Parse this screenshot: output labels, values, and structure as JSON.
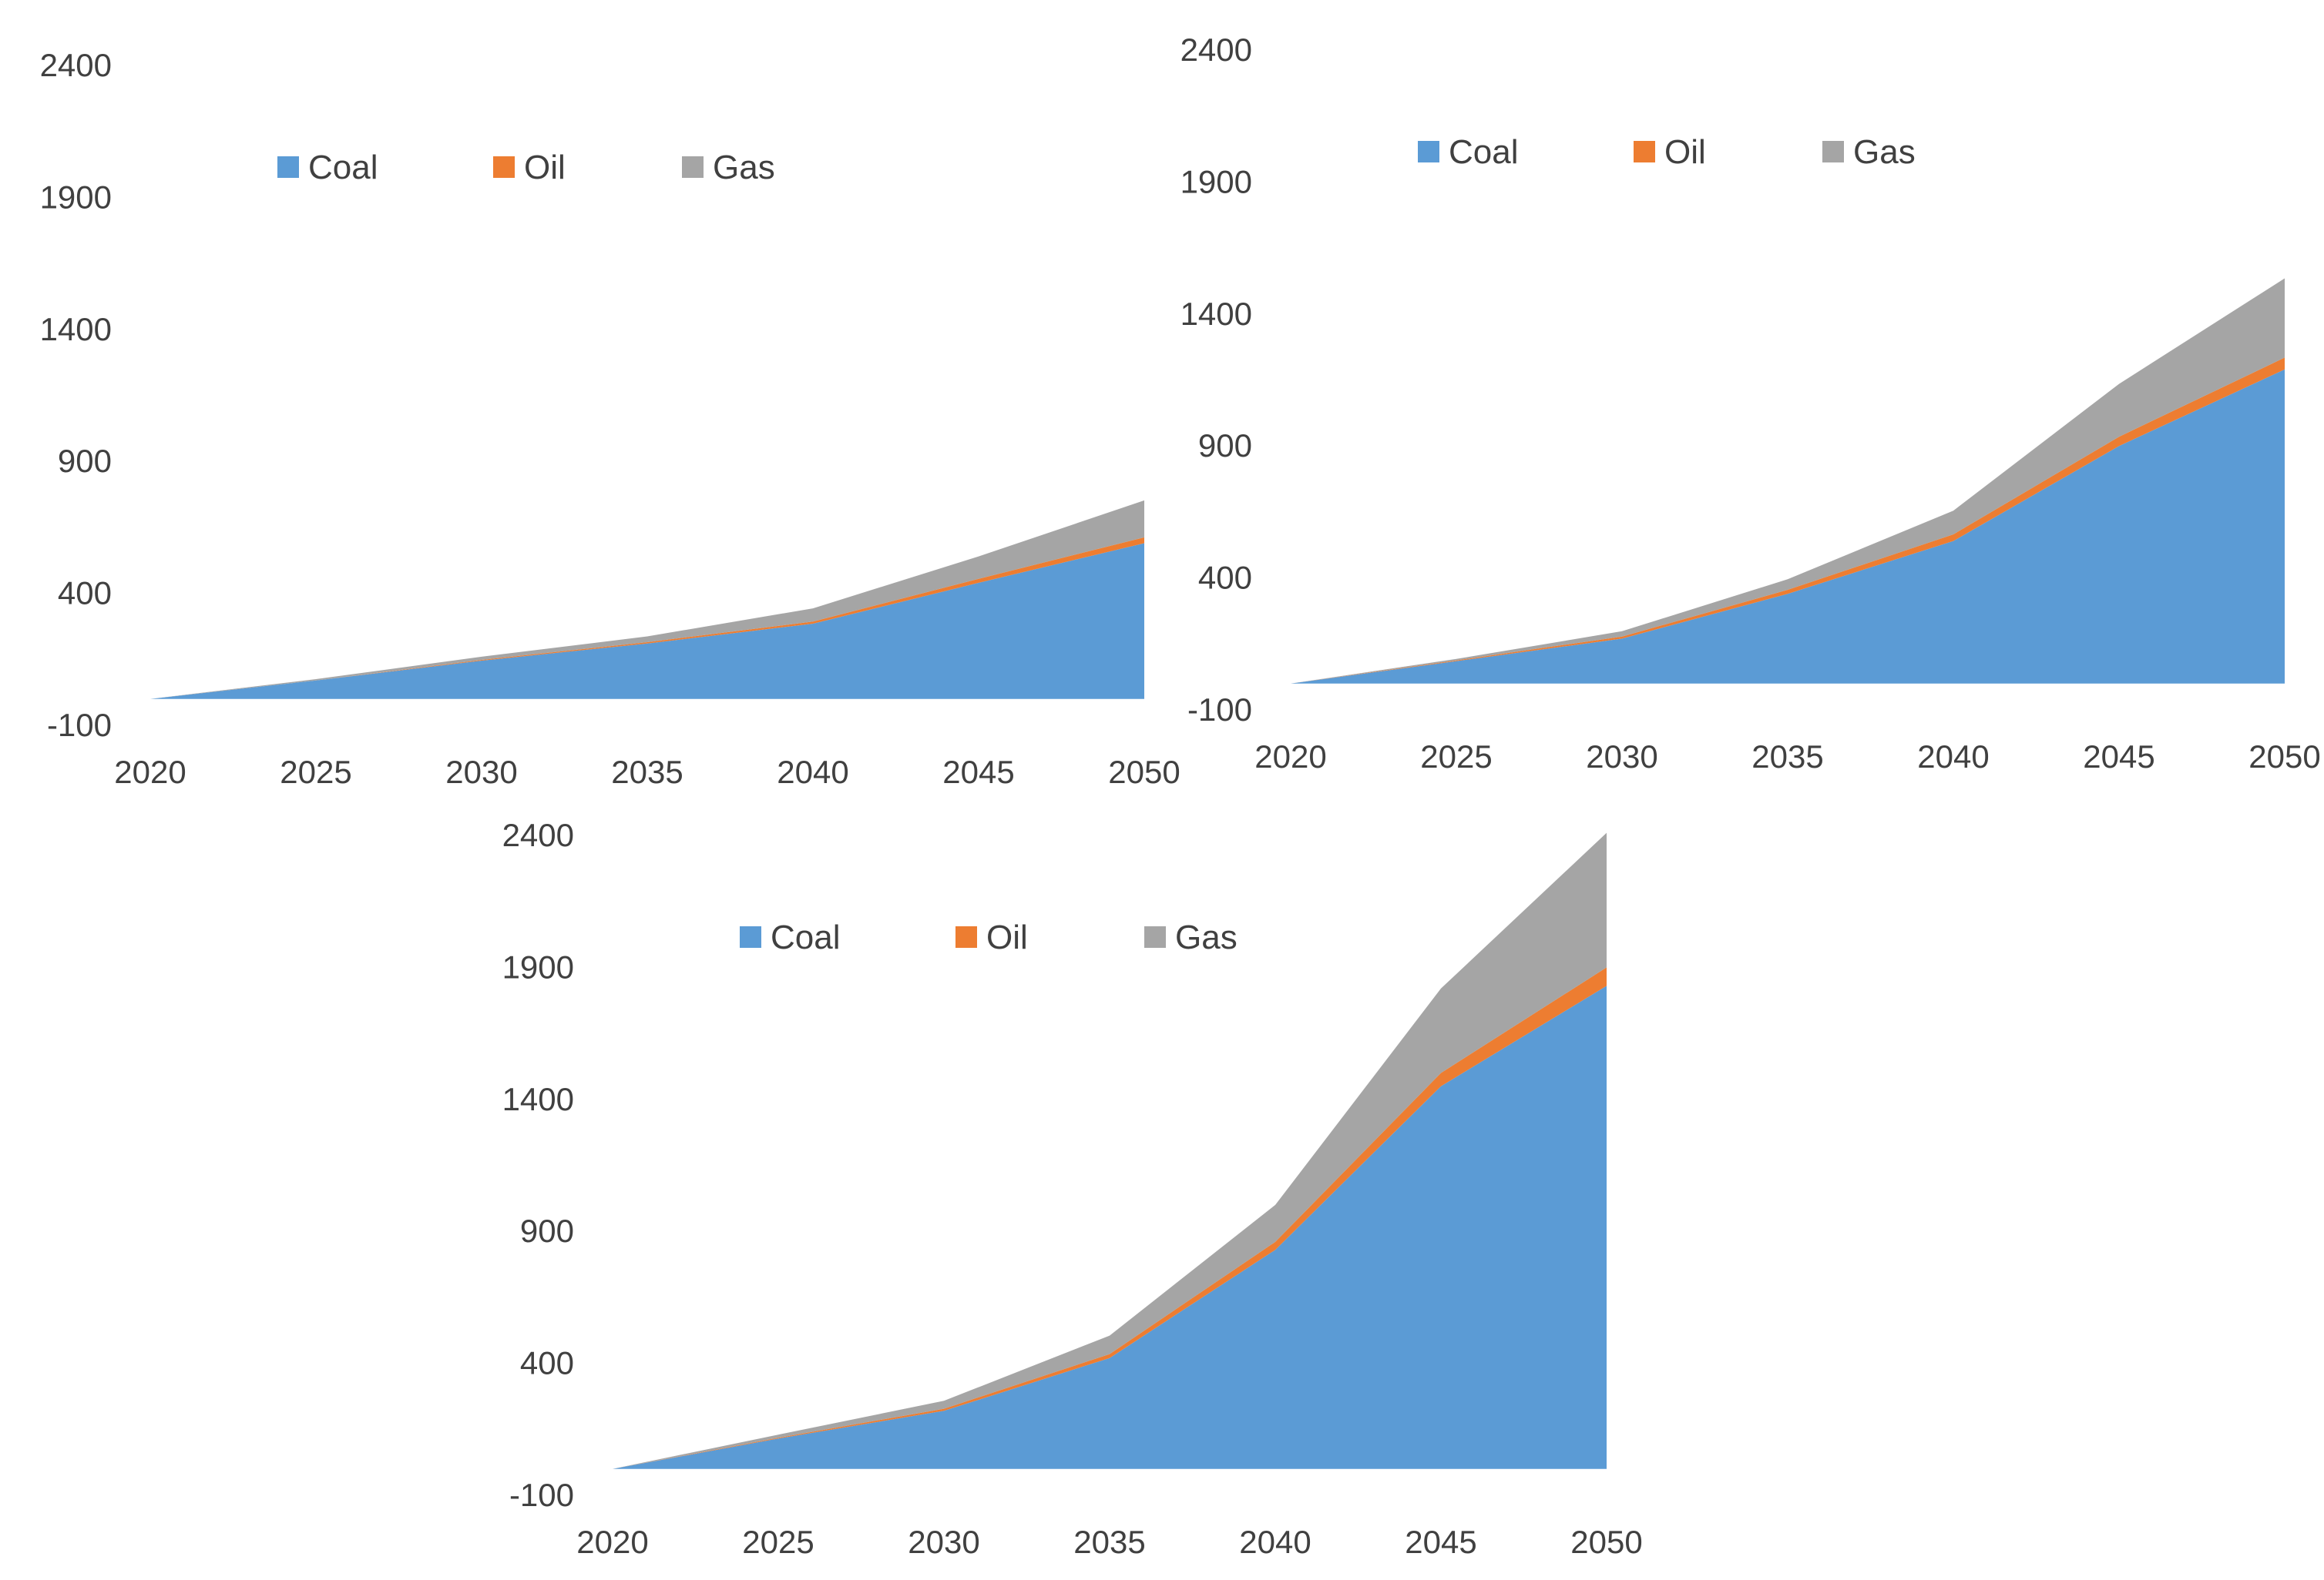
{
  "colors": {
    "coal": "#5B9BD5",
    "oil": "#ED7D31",
    "gas": "#A5A5A5",
    "text": "#404040"
  },
  "chart_data": [
    {
      "type": "area",
      "stacked": true,
      "title": "",
      "xlabel": "",
      "ylabel": "",
      "x": [
        2020,
        2025,
        2030,
        2035,
        2040,
        2045,
        2050
      ],
      "xticks": [
        "2020",
        "2025",
        "2030",
        "2035",
        "2040",
        "2045",
        "2050"
      ],
      "yticks": [
        "-100",
        "400",
        "900",
        "1400",
        "1900",
        "2400"
      ],
      "ylim": [
        -100,
        2400
      ],
      "legend_position": "top",
      "series": [
        {
          "name": "Coal",
          "values": [
            0,
            70,
            145,
            210,
            285,
            440,
            590
          ]
        },
        {
          "name": "Oil",
          "values": [
            0,
            0,
            3,
            5,
            8,
            15,
            22
          ]
        },
        {
          "name": "Gas",
          "values": [
            0,
            5,
            12,
            22,
            50,
            85,
            140
          ]
        }
      ]
    },
    {
      "type": "area",
      "stacked": true,
      "title": "",
      "xlabel": "",
      "ylabel": "",
      "x": [
        2020,
        2025,
        2030,
        2035,
        2040,
        2045,
        2050
      ],
      "xticks": [
        "2020",
        "2025",
        "2030",
        "2035",
        "2040",
        "2045",
        "2050"
      ],
      "yticks": [
        "-100",
        "400",
        "900",
        "1400",
        "1900",
        "2400"
      ],
      "ylim": [
        -100,
        2400
      ],
      "legend_position": "top",
      "series": [
        {
          "name": "Coal",
          "values": [
            0,
            85,
            170,
            340,
            540,
            900,
            1190
          ]
        },
        {
          "name": "Oil",
          "values": [
            0,
            3,
            8,
            15,
            25,
            35,
            45
          ]
        },
        {
          "name": "Gas",
          "values": [
            0,
            5,
            20,
            40,
            90,
            200,
            300
          ]
        }
      ]
    },
    {
      "type": "area",
      "stacked": true,
      "title": "",
      "xlabel": "",
      "ylabel": "",
      "x": [
        2020,
        2025,
        2030,
        2035,
        2040,
        2045,
        2050
      ],
      "xticks": [
        "2020",
        "2025",
        "2030",
        "2035",
        "2040",
        "2045",
        "2050"
      ],
      "yticks": [
        "-100",
        "400",
        "900",
        "1400",
        "1900",
        "2400"
      ],
      "ylim": [
        -100,
        2400
      ],
      "legend_position": "top",
      "series": [
        {
          "name": "Coal",
          "values": [
            0,
            115,
            220,
            420,
            830,
            1450,
            1830
          ]
        },
        {
          "name": "Oil",
          "values": [
            0,
            3,
            8,
            15,
            30,
            50,
            70
          ]
        },
        {
          "name": "Gas",
          "values": [
            0,
            12,
            30,
            70,
            140,
            320,
            510
          ]
        }
      ]
    }
  ]
}
